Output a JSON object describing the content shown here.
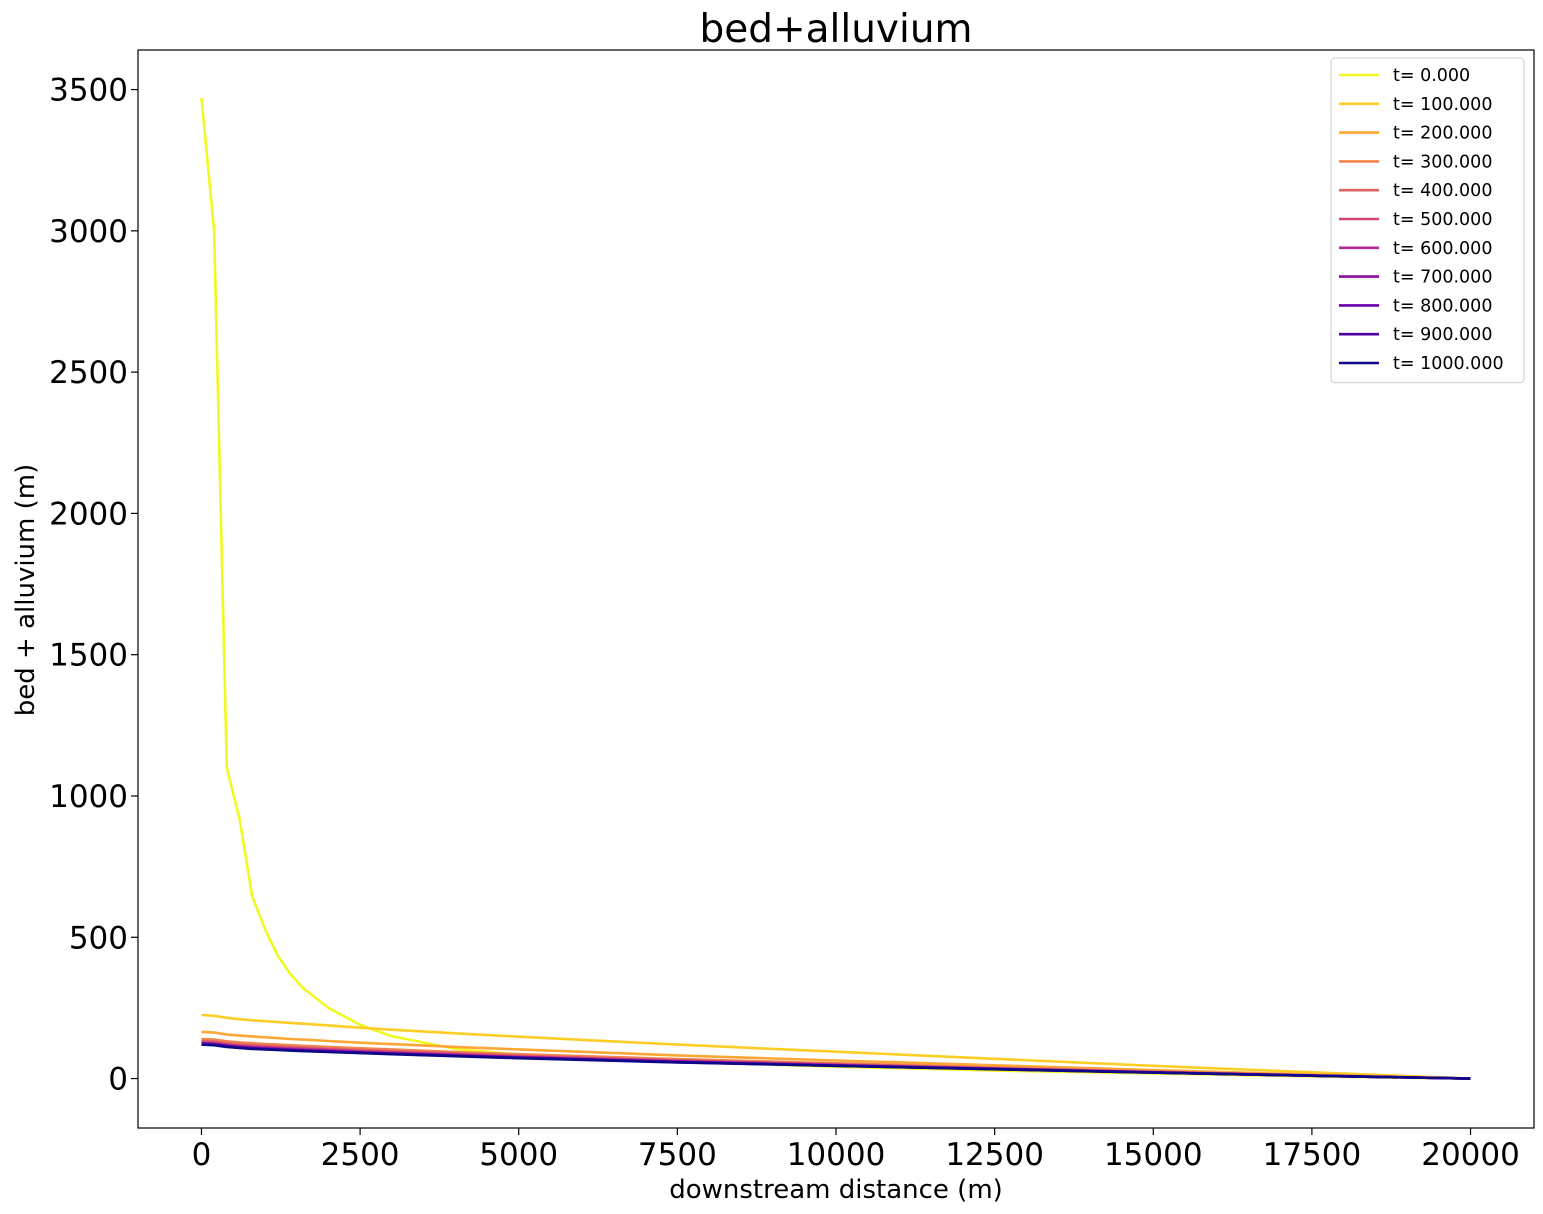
{
  "chart_data": {
    "type": "line",
    "title": "bed+alluvium",
    "xlabel": "downstream distance (m)",
    "ylabel": "bed + alluvium (m)",
    "xlim": [
      -1000,
      21000
    ],
    "ylim": [
      -175,
      3640
    ],
    "xticks": [
      0,
      2500,
      5000,
      7500,
      10000,
      12500,
      15000,
      17500,
      20000
    ],
    "yticks": [
      0,
      500,
      1000,
      1500,
      2000,
      2500,
      3000,
      3500
    ],
    "grid": false,
    "legend_position": "upper right",
    "x": [
      0,
      200,
      400,
      600,
      800,
      1000,
      1200,
      1400,
      1600,
      2000,
      2500,
      3000,
      4000,
      5000,
      7500,
      10000,
      12500,
      15000,
      17500,
      20000
    ],
    "series": [
      {
        "name": "t= 0.000",
        "color": "#f0f921",
        "values": [
          3470,
          3000,
          1100,
          920,
          645,
          530,
          435,
          370,
          320,
          250,
          190,
          150,
          105,
          85,
          60,
          42,
          28,
          18,
          8,
          0
        ]
      },
      {
        "name": "t= 100.000",
        "color": "#fcce25",
        "values": [
          225,
          222,
          215,
          210,
          206,
          203,
          200,
          197,
          194,
          188,
          180,
          173,
          160,
          148,
          120,
          95,
          70,
          45,
          22,
          0
        ]
      },
      {
        "name": "t= 200.000",
        "color": "#fca636",
        "values": [
          165,
          163,
          156,
          152,
          149,
          146,
          143,
          140,
          138,
          133,
          127,
          122,
          112,
          103,
          82,
          64,
          47,
          30,
          14,
          0
        ]
      },
      {
        "name": "t= 300.000",
        "color": "#f2844b",
        "values": [
          140,
          138,
          132,
          128,
          125,
          122,
          120,
          118,
          116,
          112,
          107,
          103,
          94,
          86,
          69,
          54,
          39,
          25,
          12,
          0
        ]
      },
      {
        "name": "t= 400.000",
        "color": "#e16462",
        "values": [
          133,
          131,
          125,
          121,
          118,
          116,
          114,
          112,
          110,
          106,
          101,
          97,
          89,
          81,
          65,
          51,
          37,
          24,
          11,
          0
        ]
      },
      {
        "name": "t= 500.000",
        "color": "#cc4778",
        "values": [
          129,
          127,
          121,
          117,
          114,
          112,
          110,
          108,
          106,
          102,
          98,
          94,
          86,
          78,
          63,
          49,
          36,
          23,
          11,
          0
        ]
      },
      {
        "name": "t= 600.000",
        "color": "#b12a90",
        "values": [
          126,
          124,
          118,
          114,
          111,
          109,
          107,
          105,
          103,
          100,
          95,
          91,
          84,
          76,
          61,
          48,
          35,
          22,
          10,
          0
        ]
      },
      {
        "name": "t= 700.000",
        "color": "#8f0da4",
        "values": [
          124,
          122,
          116,
          112,
          109,
          107,
          105,
          103,
          101,
          98,
          93,
          89,
          82,
          75,
          60,
          47,
          34,
          22,
          10,
          0
        ]
      },
      {
        "name": "t= 800.000",
        "color": "#6a00a8",
        "values": [
          122,
          120,
          114,
          110,
          107,
          105,
          103,
          101,
          99,
          96,
          92,
          88,
          81,
          74,
          59,
          46,
          34,
          21,
          10,
          0
        ]
      },
      {
        "name": "t= 900.000",
        "color": "#4c02a1",
        "values": [
          121,
          119,
          113,
          109,
          106,
          104,
          102,
          100,
          98,
          95,
          91,
          87,
          80,
          73,
          58,
          45,
          33,
          21,
          10,
          0
        ]
      },
      {
        "name": "t= 1000.000",
        "color": "#0d0887",
        "values": [
          120,
          118,
          112,
          108,
          105,
          103,
          101,
          99,
          97,
          94,
          90,
          86,
          79,
          72,
          57,
          45,
          33,
          21,
          10,
          0
        ]
      }
    ]
  }
}
